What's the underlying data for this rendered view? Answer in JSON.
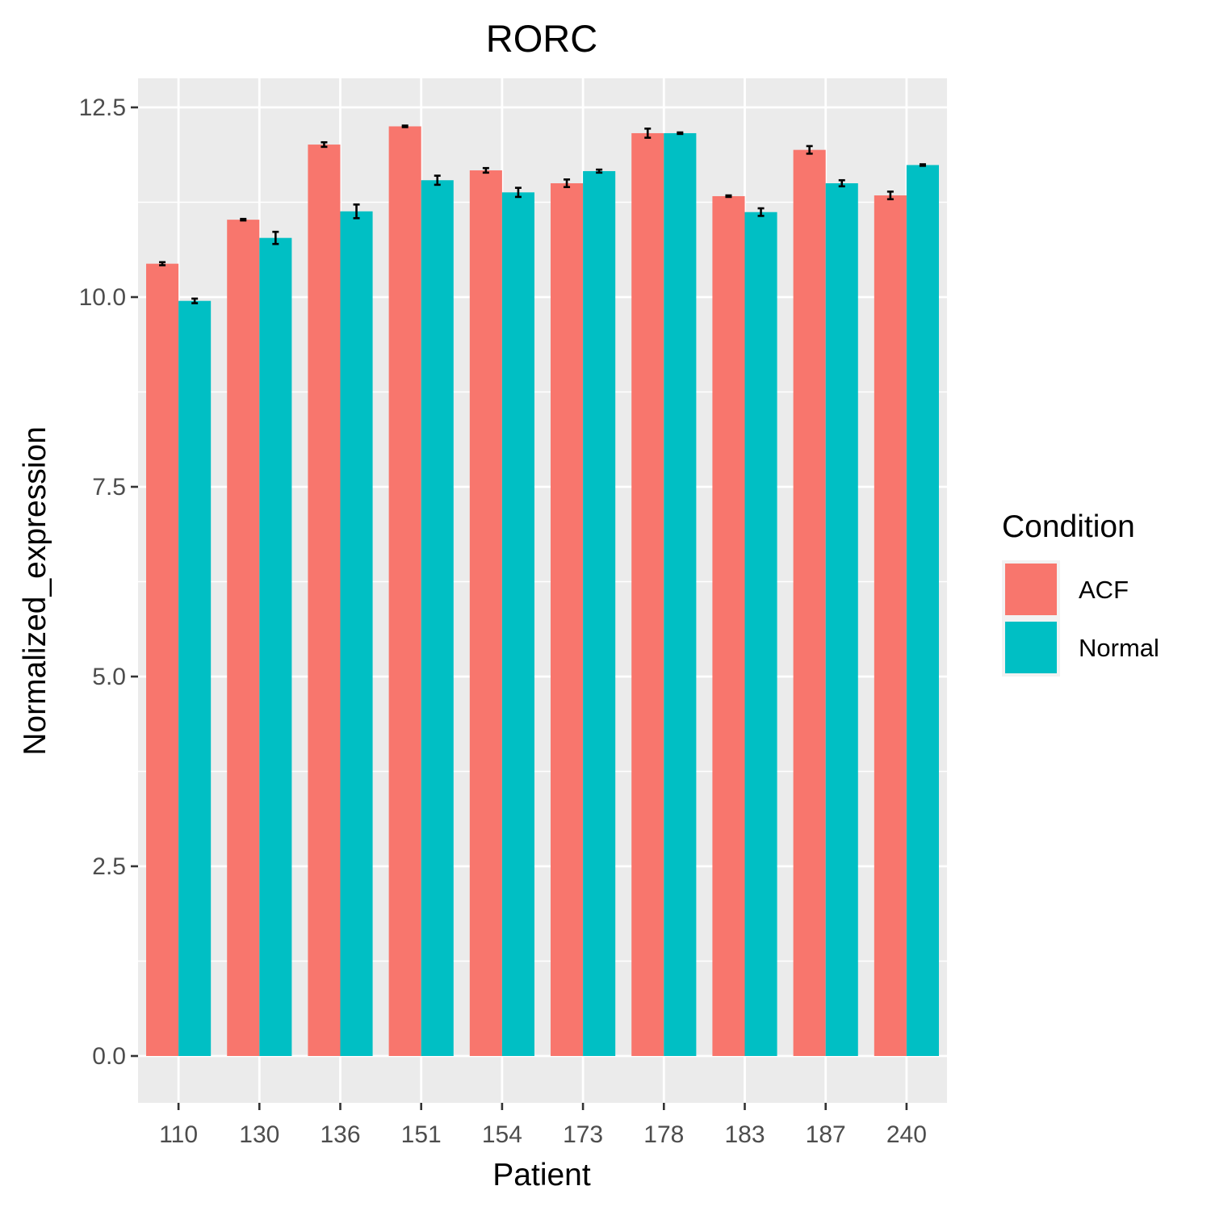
{
  "chart_data": {
    "type": "bar",
    "title": "RORC",
    "xlabel": "Patient",
    "ylabel": "Normalized_expression",
    "categories": [
      "110",
      "130",
      "136",
      "151",
      "154",
      "173",
      "178",
      "183",
      "187",
      "240"
    ],
    "ylim": [
      -0.5,
      12.9
    ],
    "yticks": [
      0.0,
      2.5,
      5.0,
      7.5,
      10.0,
      12.5
    ],
    "ytick_labels": [
      "0.0",
      "2.5",
      "5.0",
      "7.5",
      "10.0",
      "12.5"
    ],
    "grid": true,
    "legend": {
      "title": "Condition",
      "position": "right"
    },
    "series": [
      {
        "name": "ACF",
        "color": "#F8766D",
        "values": [
          10.44,
          11.02,
          12.01,
          12.25,
          11.67,
          11.5,
          12.16,
          11.33,
          11.94,
          11.34
        ],
        "errors": [
          0.02,
          0.01,
          0.03,
          0.01,
          0.03,
          0.05,
          0.06,
          0.01,
          0.05,
          0.05
        ]
      },
      {
        "name": "Normal",
        "color": "#00BFC4",
        "values": [
          9.95,
          10.78,
          11.13,
          11.54,
          11.38,
          11.66,
          12.16,
          11.12,
          11.5,
          11.74
        ],
        "errors": [
          0.03,
          0.08,
          0.09,
          0.06,
          0.06,
          0.02,
          0.01,
          0.05,
          0.04,
          0.01
        ]
      }
    ]
  }
}
